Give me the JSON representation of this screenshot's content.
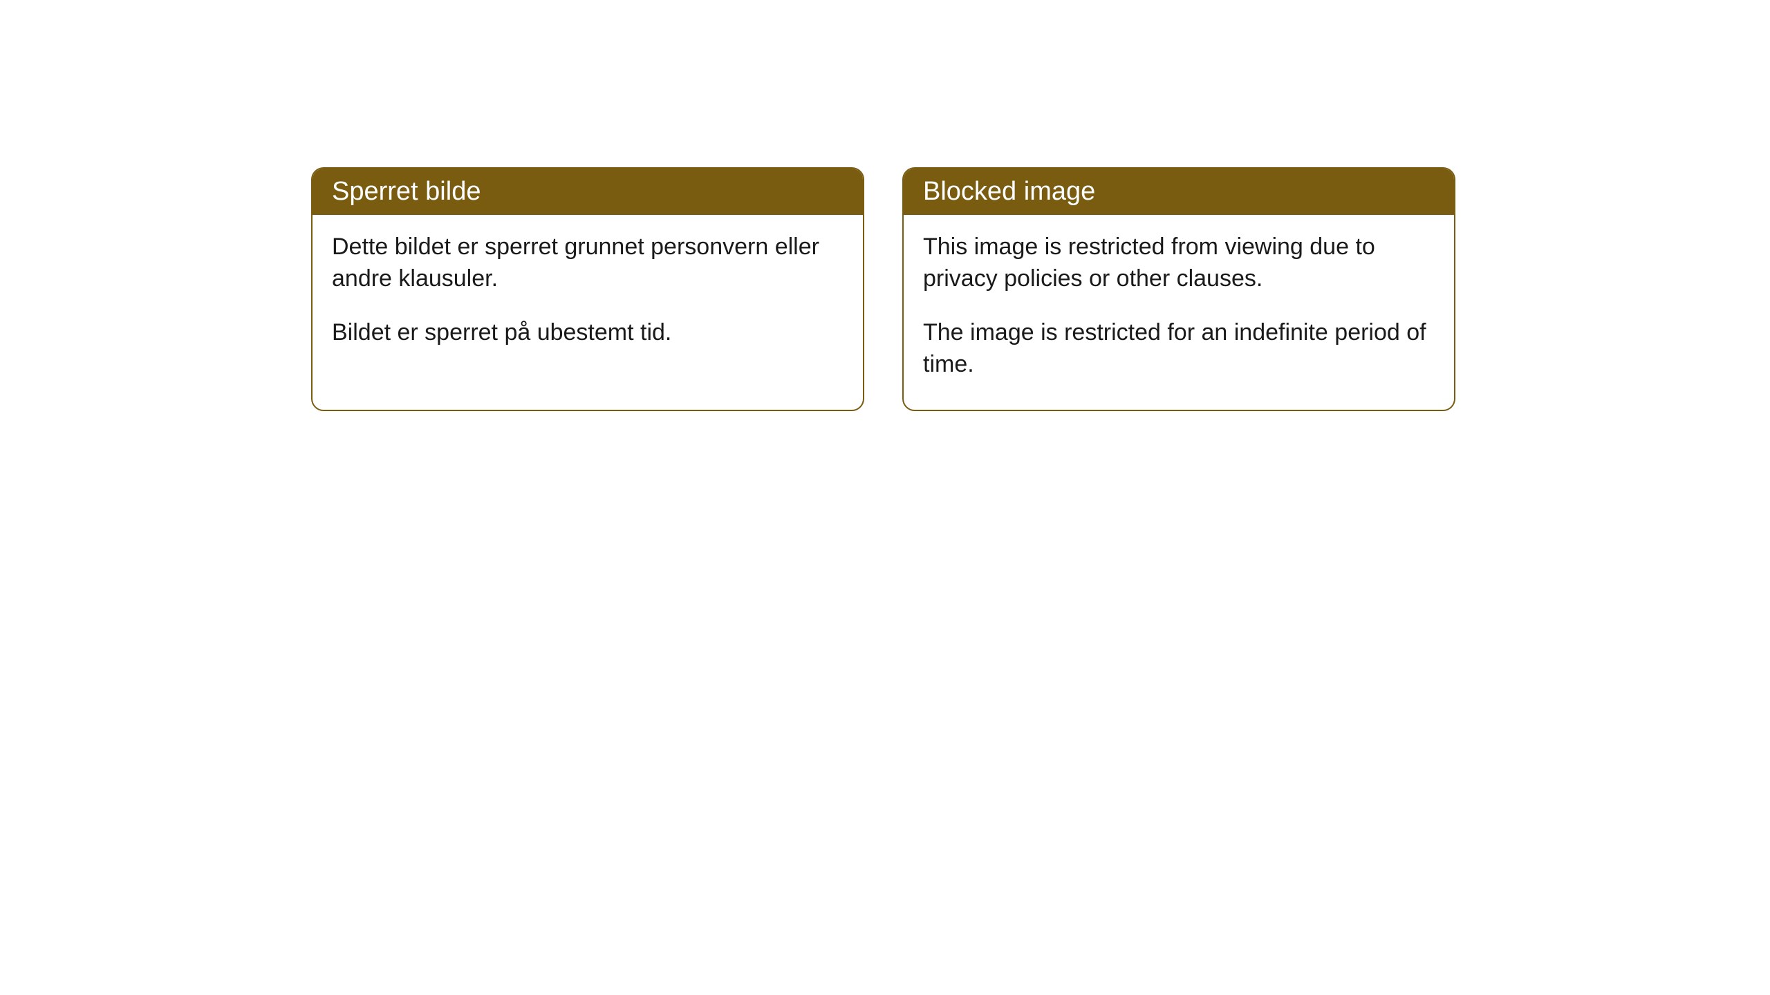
{
  "cards": [
    {
      "title": "Sperret bilde",
      "paragraph1": "Dette bildet er sperret grunnet personvern eller andre klausuler.",
      "paragraph2": "Bildet er sperret på ubestemt tid."
    },
    {
      "title": "Blocked image",
      "paragraph1": "This image is restricted from viewing due to privacy policies or other clauses.",
      "paragraph2": "The image is restricted for an indefinite period of time."
    }
  ],
  "style": {
    "header_background": "#7a5c11",
    "header_text_color": "#ffffff",
    "border_color": "#7a5c11",
    "body_text_color": "#1a1a1a",
    "background_color": "#ffffff",
    "border_radius": 18,
    "title_fontsize": 38,
    "body_fontsize": 34
  }
}
